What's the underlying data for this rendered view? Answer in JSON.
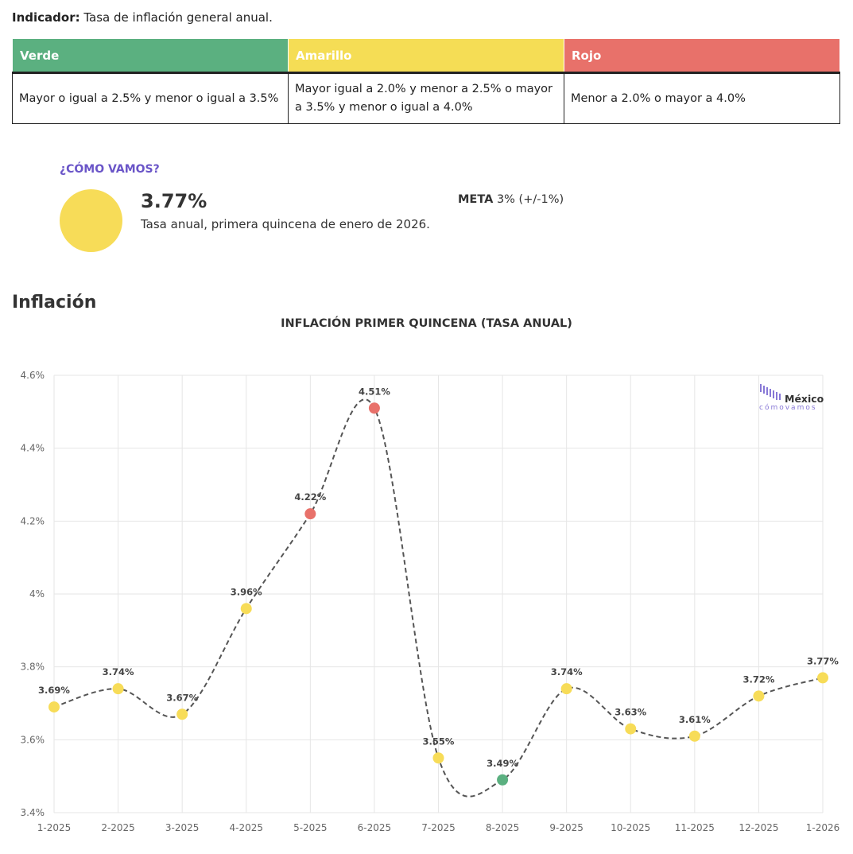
{
  "indicator": {
    "label": "Indicador:",
    "text": "Tasa de inflación general anual."
  },
  "thresholds": [
    {
      "name": "Verde",
      "color": "#5bb080",
      "description": "Mayor o igual a 2.5% y menor o igual a 3.5%"
    },
    {
      "name": "Amarillo",
      "color": "#f5dd55",
      "description": "Mayor igual a 2.0% y menor a 2.5% o mayor a 3.5% y menor o igual a 4.0%"
    },
    {
      "name": "Rojo",
      "color": "#e8716a",
      "description": "Menor a 2.0% o mayor a 4.0%"
    }
  ],
  "status": {
    "heading": "¿CÓMO VAMOS?",
    "value": "3.77%",
    "description": "Tasa anual, primera quincena de enero de 2026.",
    "meta_label": "META",
    "meta_value": "3% (+/-1%)",
    "color": "#f7dc58"
  },
  "section_title": "Inflación",
  "logo": {
    "line1": "México",
    "line2": "cómovamos"
  },
  "chart_data": {
    "type": "line",
    "title": "INFLACIÓN PRIMER QUINCENA (TASA ANUAL)",
    "xlabel": "",
    "ylabel": "",
    "categories": [
      "1-2025",
      "2-2025",
      "3-2025",
      "4-2025",
      "5-2025",
      "6-2025",
      "7-2025",
      "8-2025",
      "9-2025",
      "10-2025",
      "11-2025",
      "12-2025",
      "1-2026"
    ],
    "values": [
      3.69,
      3.74,
      3.67,
      3.96,
      4.22,
      4.51,
      3.55,
      3.49,
      3.74,
      3.63,
      3.61,
      3.72,
      3.77
    ],
    "data_labels": [
      "3.69%",
      "3.74%",
      "3.67%",
      "3.96%",
      "4.22%",
      "4.51%",
      "3.55%",
      "3.49%",
      "3.74%",
      "3.63%",
      "3.61%",
      "3.72%",
      "3.77%"
    ],
    "point_colors": [
      "#f7dc58",
      "#f7dc58",
      "#f7dc58",
      "#f7dc58",
      "#e8716a",
      "#e8716a",
      "#f7dc58",
      "#5bb080",
      "#f7dc58",
      "#f7dc58",
      "#f7dc58",
      "#f7dc58",
      "#f7dc58"
    ],
    "yticks": [
      "3.4%",
      "3.6%",
      "3.8%",
      "4%",
      "4.2%",
      "4.4%",
      "4.6%"
    ],
    "ytick_values": [
      3.4,
      3.6,
      3.8,
      4.0,
      4.2,
      4.4,
      4.6
    ],
    "ylim": [
      3.4,
      4.6
    ],
    "grid": true,
    "line_style": "dashed-smooth",
    "line_color": "#555555"
  }
}
